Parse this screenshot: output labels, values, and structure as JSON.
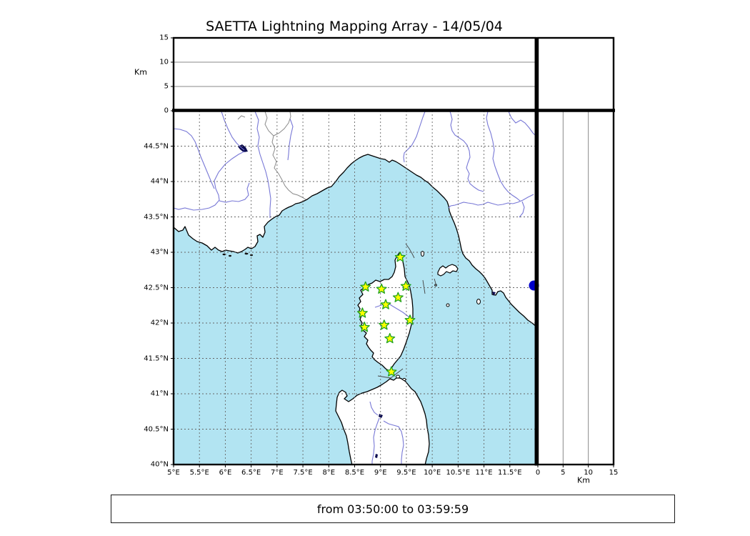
{
  "title": "SAETTA Lightning Mapping Array - 14/05/04",
  "footer": {
    "label": "from 03:50:00 to 03:59:59"
  },
  "colors": {
    "sea": "#b2e4f2",
    "land": "#ffffff",
    "coast": "#000000",
    "river": "#7878d6",
    "admin_border": "#8a8a8a",
    "maritime_line": "#444444",
    "grid_map": "#666666",
    "grid_panel": "#888888",
    "station_fill": "#ffff00",
    "station_stroke": "#1fa11f",
    "event_fill": "#0000cc",
    "lake": "#0a0a50",
    "islet_dark": "#111111",
    "frame": "#000000"
  },
  "chart_data": {
    "type": "scatter",
    "title": "SAETTA Lightning Mapping Array - 14/05/04",
    "panels": {
      "altitude_vs_longitude": {
        "position": "top",
        "axis_label": "Km",
        "tick_labels": [
          "0",
          "5",
          "10",
          "15"
        ],
        "tick_values": [
          0,
          5,
          10,
          15
        ],
        "lim": [
          0,
          15
        ],
        "gridlines_at": [
          5,
          10
        ],
        "points": []
      },
      "map": {
        "xlim": [
          5,
          12
        ],
        "ylim": [
          40,
          45
        ],
        "x_tick_labels": [
          "5°E",
          "5.5°E",
          "6°E",
          "6.5°E",
          "7°E",
          "7.5°E",
          "8°E",
          "8.5°E",
          "9°E",
          "9.5°E",
          "10°E",
          "10.5°E",
          "11°E",
          "11.5°E"
        ],
        "x_tick_values": [
          5,
          5.5,
          6,
          6.5,
          7,
          7.5,
          8,
          8.5,
          9,
          9.5,
          10,
          10.5,
          11,
          11.5
        ],
        "y_tick_labels": [
          "40°N",
          "40.5°N",
          "41°N",
          "41.5°N",
          "42°N",
          "42.5°N",
          "43°N",
          "43.5°N",
          "44°N",
          "44.5°N"
        ],
        "y_tick_values": [
          40,
          40.5,
          41,
          41.5,
          42,
          42.5,
          43,
          43.5,
          44,
          44.5
        ],
        "grid": "dashed",
        "station_marker": {
          "shape": "star",
          "fill": "#ffff00",
          "stroke": "#1fa11f"
        },
        "stations": [
          {
            "lon": 9.38,
            "lat": 42.93
          },
          {
            "lon": 8.71,
            "lat": 42.51
          },
          {
            "lon": 9.02,
            "lat": 42.48
          },
          {
            "lon": 9.49,
            "lat": 42.52
          },
          {
            "lon": 9.34,
            "lat": 42.36
          },
          {
            "lon": 9.1,
            "lat": 42.26
          },
          {
            "lon": 8.65,
            "lat": 42.14
          },
          {
            "lon": 9.57,
            "lat": 42.04
          },
          {
            "lon": 9.07,
            "lat": 41.97
          },
          {
            "lon": 8.69,
            "lat": 41.94
          },
          {
            "lon": 9.18,
            "lat": 41.78
          },
          {
            "lon": 9.21,
            "lat": 41.31
          }
        ],
        "event_marker": {
          "shape": "circle",
          "fill": "#0000cc"
        },
        "events": [
          {
            "lon": 11.97,
            "lat": 42.53
          }
        ]
      },
      "altitude_vs_latitude": {
        "position": "right",
        "axis_label": "Km",
        "tick_labels": [
          "0",
          "5",
          "10",
          "15"
        ],
        "tick_values": [
          0,
          5,
          10,
          15
        ],
        "lim": [
          0,
          15
        ],
        "gridlines_at": [
          5,
          10
        ],
        "points": []
      }
    },
    "footer_label": "from 03:50:00 to 03:59:59"
  }
}
